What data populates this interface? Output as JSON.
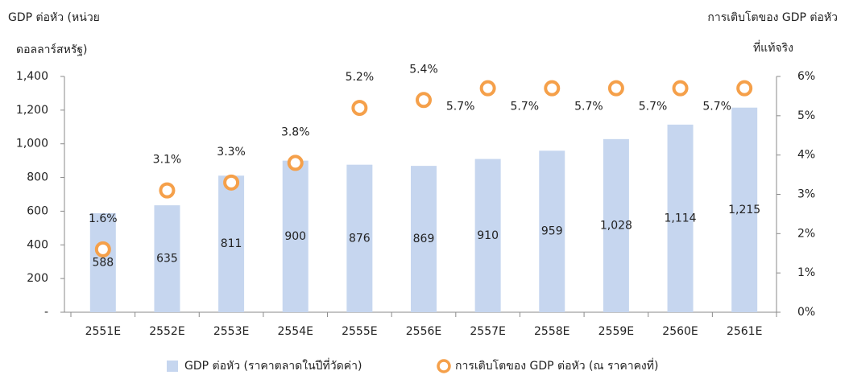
{
  "chart_data": {
    "type": "bar",
    "categories": [
      "2551E",
      "2552E",
      "2553E",
      "2554E",
      "2555E",
      "2556E",
      "2557E",
      "2558E",
      "2559E",
      "2560E",
      "2561E"
    ],
    "ylabel": [
      "GDP ต่อหัว (หน่วย",
      "ดอลลาร์สหรัฐ)"
    ],
    "y2label": [
      "การเติบโตของ GDP ต่อหัว",
      "ที่แท้จริง"
    ],
    "ylim": [
      0,
      1400
    ],
    "yticks": [
      {
        "value": 0,
        "label": "-"
      },
      200,
      400,
      600,
      800,
      {
        "value": 1000,
        "label": "1,000"
      },
      {
        "value": 1200,
        "label": "1,200"
      },
      {
        "value": 1400,
        "label": "1,400"
      }
    ],
    "y2lim": [
      0,
      6
    ],
    "y2ticks": [
      {
        "value": 0,
        "label": "0%"
      },
      {
        "value": 1,
        "label": "1%"
      },
      {
        "value": 2,
        "label": "2%"
      },
      {
        "value": 3,
        "label": "3%"
      },
      {
        "value": 4,
        "label": "4%"
      },
      {
        "value": 5,
        "label": "5%"
      },
      {
        "value": 6,
        "label": "6%"
      }
    ],
    "legend": "bottom",
    "series": [
      {
        "name": "GDP ต่อหัว (ราคาตลาดในปีที่วัดค่า)",
        "type": "bar",
        "color": "#c6d6ef",
        "values": [
          588,
          635,
          811,
          900,
          876,
          869,
          910,
          959,
          1028,
          1114,
          1215
        ],
        "value_labels": [
          "588",
          "635",
          "811",
          "900",
          "876",
          "869",
          "910",
          "959",
          "1,028",
          "1,114",
          "1,215"
        ]
      },
      {
        "name": "การเติบโตของ GDP ต่อหัว (ณ ราคาคงที่)",
        "type": "scatter",
        "axis": "y2",
        "color": "#f5a04a",
        "values": [
          1.6,
          3.1,
          3.3,
          3.8,
          5.2,
          5.4,
          5.7,
          5.7,
          5.7,
          5.7,
          5.7
        ],
        "value_labels": [
          "1.6%",
          "3.1%",
          "3.3%",
          "3.8%",
          "5.2%",
          "5.4%",
          "5.7%",
          "5.7%",
          "5.7%",
          "5.7%",
          "5.7%"
        ]
      }
    ]
  }
}
